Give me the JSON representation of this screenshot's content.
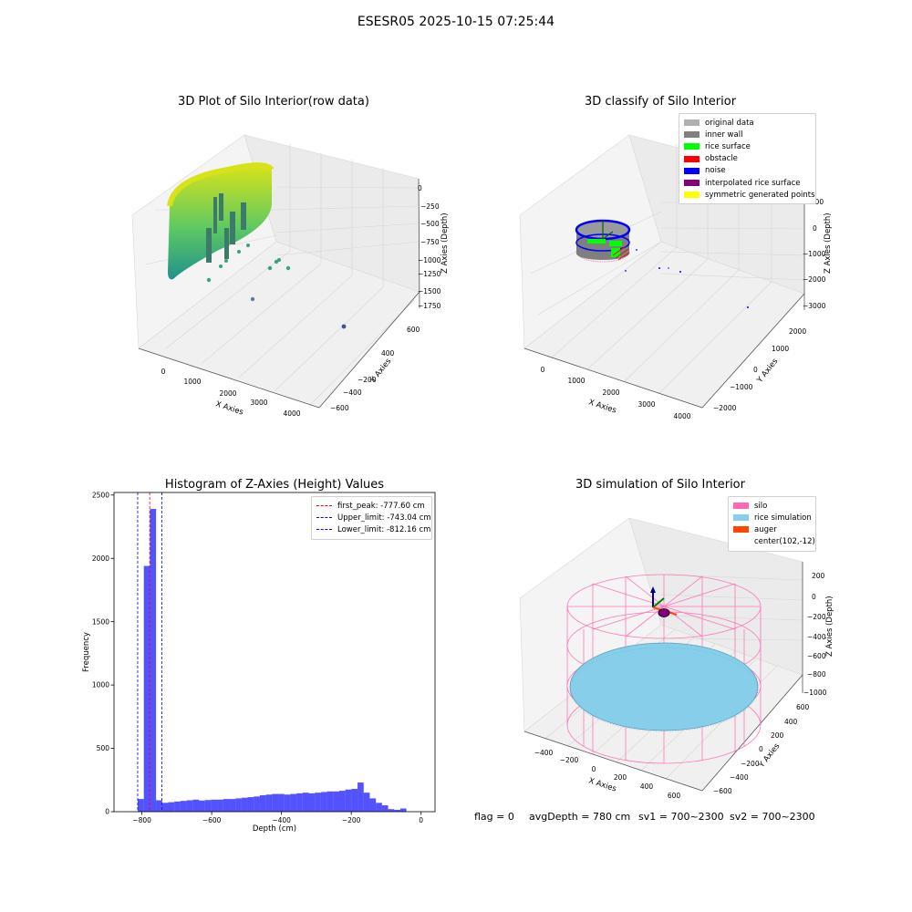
{
  "figure_title": "ESESR05 2025-10-15 07:25:44",
  "footer": {
    "flag": "flag = 0",
    "avg_depth": "avgDepth = 780 cm",
    "sv1": "sv1 = 700~2300",
    "sv2": "sv2 = 700~2300"
  },
  "panels": {
    "raw": {
      "title": "3D Plot of Silo Interior(row data)",
      "xlabel": "X Axies",
      "ylabel": "Y Axies",
      "zlabel": "Z Axies (Depth)",
      "xticks": [
        "0",
        "1000",
        "2000",
        "3000",
        "4000"
      ],
      "yticks": [
        "600",
        "400",
        "200",
        "−200",
        "−400",
        "−600"
      ],
      "zticks": [
        "0",
        "−250",
        "−500",
        "−750",
        "−1000",
        "−1250",
        "−1500",
        "−1750"
      ]
    },
    "classify": {
      "title": "3D classify of Silo Interior",
      "xlabel": "X Axies",
      "ylabel": "Y Axies",
      "zlabel": "Z Axies (Depth)",
      "xticks": [
        "0",
        "1000",
        "2000",
        "3000",
        "4000"
      ],
      "yticks": [
        "2000",
        "1000",
        "0",
        "−1000",
        "−2000"
      ],
      "zticks": [
        "1000",
        "0",
        "−1000",
        "−2000",
        "−3000"
      ],
      "legend": [
        {
          "label": "original data",
          "color": "#b0b0b0"
        },
        {
          "label": "inner wall",
          "color": "#808080"
        },
        {
          "label": "rice surface",
          "color": "#00ff00"
        },
        {
          "label": "obstacle",
          "color": "#ff0000"
        },
        {
          "label": "noise",
          "color": "#0000ff"
        },
        {
          "label": "interpolated rice surface",
          "color": "#800080"
        },
        {
          "label": "symmetric generated points",
          "color": "#ffff00"
        }
      ]
    },
    "simulation": {
      "title": "3D simulation of Silo Interior",
      "xlabel": "X Axies",
      "ylabel": "Y Axies",
      "zlabel": "Z Axies (Depth)",
      "xticks": [
        "−400",
        "−200",
        "0",
        "200",
        "400",
        "600"
      ],
      "yticks": [
        "600",
        "400",
        "200",
        "0",
        "−200",
        "−400",
        "−600"
      ],
      "zticks": [
        "200",
        "0",
        "−200",
        "−400",
        "−600",
        "−800",
        "−1000"
      ],
      "legend": [
        {
          "label": "silo",
          "color": "#ff69b4"
        },
        {
          "label": "rice simulation",
          "color": "#87ceeb"
        },
        {
          "label": "auger",
          "color": "#ff4500"
        },
        {
          "label": "center(102,-12)",
          "color": ""
        }
      ]
    }
  },
  "chart_data": {
    "type": "bar",
    "title": "Histogram of Z-Axies (Height) Values",
    "xlabel": "Depth (cm)",
    "ylabel": "Frequency",
    "xlim": [
      -880,
      40
    ],
    "ylim": [
      0,
      2520
    ],
    "xticks": [
      -800,
      -600,
      -400,
      -200,
      0
    ],
    "xtick_labels": [
      "−800",
      "−600",
      "−400",
      "−200",
      "0"
    ],
    "yticks": [
      0,
      500,
      1000,
      1500,
      2000,
      2500
    ],
    "bar_color": "#0000ff",
    "bar_opacity": 0.68,
    "bin_start": -812,
    "bin_width": 17.5,
    "values": [
      100,
      1940,
      2390,
      90,
      70,
      75,
      80,
      85,
      90,
      95,
      88,
      92,
      95,
      95,
      100,
      100,
      105,
      110,
      115,
      120,
      130,
      135,
      140,
      140,
      135,
      140,
      145,
      150,
      145,
      150,
      155,
      160,
      160,
      165,
      175,
      180,
      230,
      150,
      105,
      70,
      50,
      20,
      15,
      25
    ],
    "reference_lines": [
      {
        "name": "first_peak",
        "value": -777.6,
        "color": "#ff0000",
        "label": "first_peak: -777.60 cm"
      },
      {
        "name": "Upper_limit",
        "value": -743.04,
        "color": "#0000ff",
        "label": "Upper_limit: -743.04 cm"
      },
      {
        "name": "Lower_limit",
        "value": -812.16,
        "color": "#0000ff",
        "label": "Lower_limit: -812.16 cm"
      }
    ],
    "legend_position": "upper right"
  }
}
